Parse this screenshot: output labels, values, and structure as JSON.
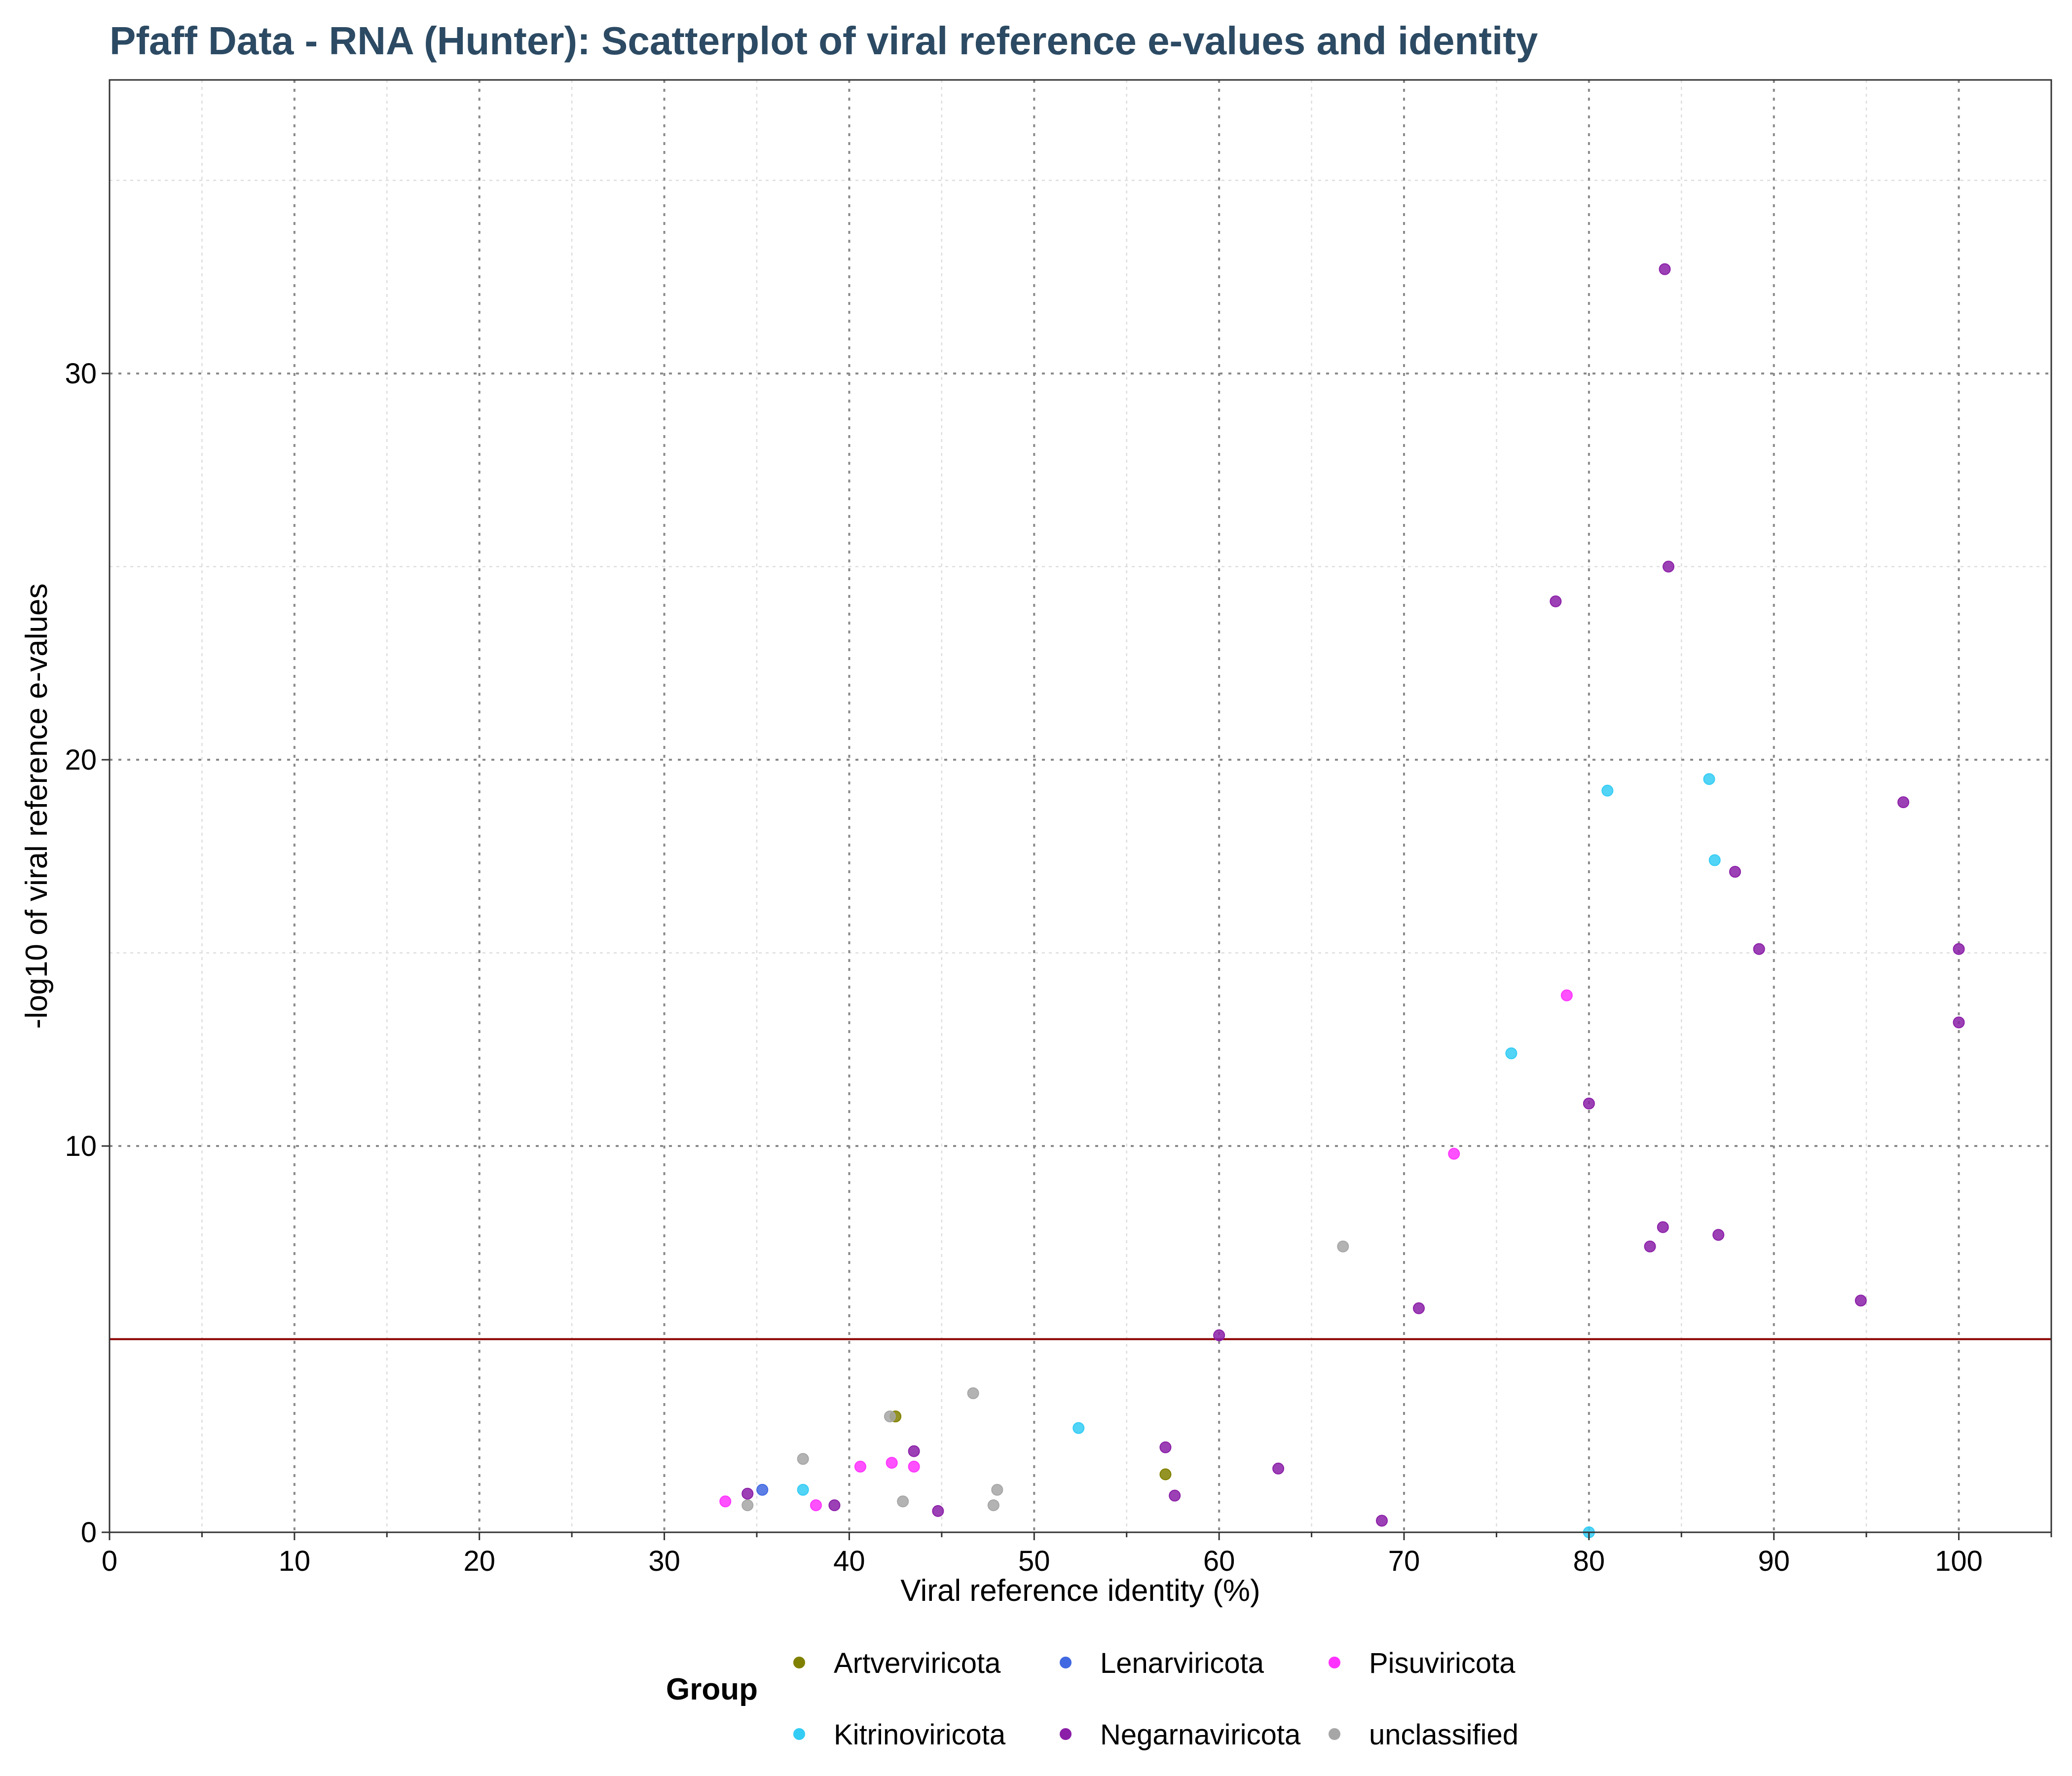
{
  "chart_data": {
    "type": "scatter",
    "title": "Pfaff Data - RNA (Hunter): Scatterplot of viral reference e-values and identity",
    "xlabel": "Viral reference identity (%)",
    "ylabel": "-log10 of viral reference e-values",
    "xlim": [
      0,
      105
    ],
    "ylim": [
      0,
      37.6
    ],
    "x_ticks": [
      0,
      10,
      20,
      30,
      40,
      50,
      60,
      70,
      80,
      90,
      100
    ],
    "y_ticks": [
      0,
      10,
      20,
      30
    ],
    "x_minor_ticks": [
      5,
      15,
      25,
      35,
      45,
      55,
      65,
      75,
      85,
      95,
      105
    ],
    "y_minor_ticks": [
      5,
      15,
      25,
      35
    ],
    "grid": true,
    "threshold": {
      "y": 5,
      "color": "#8b0000"
    },
    "legend": {
      "title": "Group",
      "position": "bottom",
      "entries": [
        {
          "name": "Artverviricota",
          "color": "#808000"
        },
        {
          "name": "Lenarviricota",
          "color": "#4169e1"
        },
        {
          "name": "Pisuviricota",
          "color": "#ff33ff"
        },
        {
          "name": "Kitrinoviricota",
          "color": "#33ccf5"
        },
        {
          "name": "Negarnaviricota",
          "color": "#8b1fa8"
        },
        {
          "name": "unclassified",
          "color": "#a6a6a6"
        }
      ]
    },
    "series": [
      {
        "name": "Artverviricota",
        "color": "#808000",
        "points": [
          [
            42.5,
            3.0
          ],
          [
            57.1,
            1.5
          ]
        ]
      },
      {
        "name": "Lenarviricota",
        "color": "#4169e1",
        "points": [
          [
            35.3,
            1.1
          ]
        ]
      },
      {
        "name": "Pisuviricota",
        "color": "#ff33ff",
        "points": [
          [
            33.3,
            0.8
          ],
          [
            38.2,
            0.7
          ],
          [
            40.6,
            1.7
          ],
          [
            42.3,
            1.8
          ],
          [
            43.5,
            1.7
          ],
          [
            72.7,
            9.8
          ],
          [
            78.8,
            13.9
          ]
        ]
      },
      {
        "name": "Kitrinoviricota",
        "color": "#33ccf5",
        "points": [
          [
            37.5,
            1.1
          ],
          [
            52.4,
            2.7
          ],
          [
            75.8,
            12.4
          ],
          [
            80.0,
            0.0
          ],
          [
            81.0,
            19.2
          ],
          [
            86.5,
            19.5
          ],
          [
            86.8,
            17.4
          ]
        ]
      },
      {
        "name": "Negarnaviricota",
        "color": "#8b1fa8",
        "points": [
          [
            34.5,
            1.0
          ],
          [
            39.2,
            0.7
          ],
          [
            43.5,
            2.1
          ],
          [
            44.8,
            0.55
          ],
          [
            57.1,
            2.2
          ],
          [
            57.6,
            0.95
          ],
          [
            60.0,
            5.1
          ],
          [
            63.2,
            1.65
          ],
          [
            68.8,
            0.3
          ],
          [
            70.8,
            5.8
          ],
          [
            78.2,
            24.1
          ],
          [
            80.0,
            11.1
          ],
          [
            83.3,
            7.4
          ],
          [
            84.0,
            7.9
          ],
          [
            84.1,
            32.7
          ],
          [
            84.3,
            25.0
          ],
          [
            87.0,
            7.7
          ],
          [
            87.9,
            17.1
          ],
          [
            89.2,
            15.1
          ],
          [
            94.7,
            6.0
          ],
          [
            97.0,
            18.9
          ],
          [
            100.0,
            15.1
          ],
          [
            100.0,
            13.2
          ]
        ]
      },
      {
        "name": "unclassified",
        "color": "#a6a6a6",
        "points": [
          [
            34.5,
            0.7
          ],
          [
            37.5,
            1.9
          ],
          [
            42.2,
            3.0
          ],
          [
            42.9,
            0.8
          ],
          [
            46.7,
            3.6
          ],
          [
            47.8,
            0.7
          ],
          [
            48.0,
            1.1
          ],
          [
            66.7,
            7.4
          ]
        ]
      }
    ]
  }
}
